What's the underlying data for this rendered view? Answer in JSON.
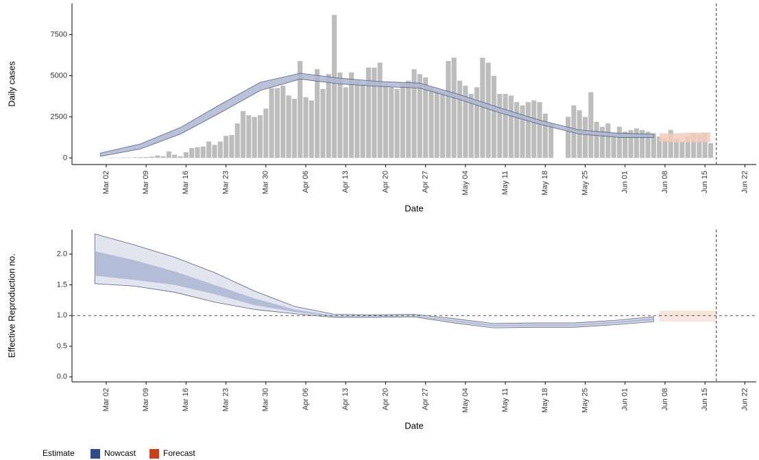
{
  "chart_data": [
    {
      "type": "bar",
      "x_label": "Date",
      "y_label": "Daily cases",
      "x": [
        "Mar 01",
        "Mar 02",
        "Mar 03",
        "Mar 04",
        "Mar 05",
        "Mar 06",
        "Mar 07",
        "Mar 08",
        "Mar 09",
        "Mar 10",
        "Mar 11",
        "Mar 12",
        "Mar 13",
        "Mar 14",
        "Mar 15",
        "Mar 16",
        "Mar 17",
        "Mar 18",
        "Mar 19",
        "Mar 20",
        "Mar 21",
        "Mar 22",
        "Mar 23",
        "Mar 24",
        "Mar 25",
        "Mar 26",
        "Mar 27",
        "Mar 28",
        "Mar 29",
        "Mar 30",
        "Mar 31",
        "Apr 01",
        "Apr 02",
        "Apr 03",
        "Apr 04",
        "Apr 05",
        "Apr 06",
        "Apr 07",
        "Apr 08",
        "Apr 09",
        "Apr 10",
        "Apr 11",
        "Apr 12",
        "Apr 13",
        "Apr 14",
        "Apr 15",
        "Apr 16",
        "Apr 17",
        "Apr 18",
        "Apr 19",
        "Apr 20",
        "Apr 21",
        "Apr 22",
        "Apr 23",
        "Apr 24",
        "Apr 25",
        "Apr 26",
        "Apr 27",
        "Apr 28",
        "Apr 29",
        "Apr 30",
        "May 01",
        "May 02",
        "May 03",
        "May 04",
        "May 05",
        "May 06",
        "May 07",
        "May 08",
        "May 09",
        "May 10",
        "May 11",
        "May 12",
        "May 13",
        "May 14",
        "May 15",
        "May 16",
        "May 17",
        "May 18",
        "May 19",
        "May 20",
        "May 21",
        "May 22",
        "May 23",
        "May 24",
        "May 25",
        "May 26",
        "May 27",
        "May 28",
        "May 29",
        "May 30",
        "May 31",
        "Jun 01",
        "Jun 02",
        "Jun 03",
        "Jun 04",
        "Jun 05",
        "Jun 06",
        "Jun 07",
        "Jun 08",
        "Jun 09",
        "Jun 10",
        "Jun 11",
        "Jun 12",
        "Jun 13",
        "Jun 14",
        "Jun 15",
        "Jun 16"
      ],
      "values": [
        10,
        10,
        20,
        20,
        30,
        30,
        40,
        50,
        60,
        80,
        150,
        100,
        400,
        200,
        100,
        350,
        600,
        650,
        700,
        1000,
        800,
        1000,
        1350,
        1400,
        2100,
        2850,
        2600,
        2500,
        2600,
        3000,
        4250,
        4250,
        4400,
        3800,
        3600,
        5900,
        3700,
        3500,
        5400,
        4200,
        5100,
        8700,
        5200,
        4300,
        5200,
        4700,
        4500,
        5500,
        5500,
        5800,
        4500,
        4300,
        4200,
        4500,
        4700,
        5400,
        5100,
        4900,
        4300,
        4100,
        4000,
        5900,
        6100,
        4700,
        4400,
        3900,
        4300,
        6100,
        5800,
        5000,
        3900,
        3900,
        3800,
        3400,
        3200,
        3400,
        3500,
        3400,
        2700,
        2100,
        null,
        null,
        2500,
        3200,
        2900,
        2500,
        4000,
        2200,
        1900,
        2100,
        1500,
        1900,
        1600,
        1700,
        1800,
        1700,
        1600,
        1500,
        1300,
        1200,
        1700,
        1200,
        1000,
        1300,
        1500,
        1400,
        1500,
        900
      ],
      "color": "#bdbdbd",
      "series": [
        {
          "color": "#aeb7d3",
          "x": [
            "Mar 01",
            "Mar 08",
            "Mar 15",
            "Mar 22",
            "Mar 29",
            "Apr 05",
            "Apr 12",
            "Apr 19",
            "Apr 26",
            "May 03",
            "May 10",
            "May 17",
            "May 24",
            "May 31",
            "Jun 06"
          ],
          "lower": [
            100,
            550,
            1450,
            2750,
            4100,
            4800,
            4500,
            4350,
            4250,
            3550,
            2750,
            2050,
            1450,
            1250,
            1250
          ],
          "upper": [
            300,
            850,
            1850,
            3250,
            4600,
            5150,
            4850,
            4650,
            4550,
            3850,
            3050,
            2300,
            1700,
            1500,
            1450
          ]
        },
        {
          "color": "#f3cdbd",
          "x": [
            "Jun 07",
            "Jun 10",
            "Jun 13",
            "Jun 16"
          ],
          "lower": [
            1000,
            950,
            950,
            950
          ],
          "upper": [
            1500,
            1500,
            1550,
            1550
          ]
        }
      ],
      "xlim": [
        "Feb 25",
        "Jun 24"
      ],
      "xticks": [
        "Mar 02",
        "Mar 09",
        "Mar 16",
        "Mar 23",
        "Mar 30",
        "Apr 06",
        "Apr 13",
        "Apr 20",
        "Apr 27",
        "May 04",
        "May 11",
        "May 18",
        "May 25",
        "Jun 01",
        "Jun 08",
        "Jun 15",
        "Jun 22"
      ],
      "ylim": [
        -400,
        9400
      ],
      "yticks": [
        0,
        2500,
        5000,
        7500
      ],
      "vline": "Jun 17"
    },
    {
      "type": "ribbon",
      "x_label": "Date",
      "y_label": "Effective Reproduction no.",
      "series": [
        {
          "color": "#dde1ec",
          "inner_color": "#aab6d2",
          "x": [
            "Feb 29",
            "Mar 07",
            "Mar 14",
            "Mar 21",
            "Mar 28",
            "Apr 04",
            "Apr 11",
            "Apr 18",
            "Apr 25",
            "May 02",
            "May 09",
            "May 16",
            "May 23",
            "May 30",
            "Jun 06"
          ],
          "lower": [
            1.52,
            1.48,
            1.38,
            1.22,
            1.1,
            1.03,
            0.97,
            0.97,
            0.98,
            0.88,
            0.8,
            0.81,
            0.81,
            0.85,
            0.9
          ],
          "upper": [
            2.33,
            2.15,
            1.95,
            1.7,
            1.4,
            1.15,
            1.02,
            1.01,
            1.02,
            0.95,
            0.87,
            0.88,
            0.88,
            0.92,
            0.98
          ],
          "inner_lower": [
            1.65,
            1.58,
            1.5,
            1.35,
            1.17,
            1.06,
            0.98,
            0.98,
            0.99,
            0.9,
            0.82,
            0.83,
            0.83,
            0.87,
            0.92
          ],
          "inner_upper": [
            2.05,
            1.9,
            1.72,
            1.5,
            1.28,
            1.1,
            1.0,
            0.99,
            1.0,
            0.93,
            0.85,
            0.86,
            0.86,
            0.9,
            0.96
          ]
        },
        {
          "color": "#f6e2d8",
          "x": [
            "Jun 07",
            "Jun 12",
            "Jun 17"
          ],
          "lower": [
            0.9,
            0.9,
            0.9
          ],
          "upper": [
            1.08,
            1.08,
            1.08
          ]
        }
      ],
      "xlim": [
        "Feb 25",
        "Jun 24"
      ],
      "xticks": [
        "Mar 02",
        "Mar 09",
        "Mar 16",
        "Mar 23",
        "Mar 30",
        "Apr 06",
        "Apr 13",
        "Apr 20",
        "Apr 27",
        "May 04",
        "May 11",
        "May 18",
        "May 25",
        "Jun 01",
        "Jun 08",
        "Jun 15",
        "Jun 22"
      ],
      "ylim": [
        -0.08,
        2.4
      ],
      "yticks": [
        {
          "value": 0,
          "label": "0.0"
        },
        0.5,
        {
          "value": 1,
          "label": "1.0"
        },
        1.5,
        {
          "value": 2,
          "label": "2.0"
        }
      ],
      "hline": 1,
      "vline": "Jun 17"
    }
  ],
  "legend": {
    "title": "Estimate",
    "items": [
      {
        "name": "Nowcast",
        "color": "#2f4b8c"
      },
      {
        "name": "Forecast",
        "color": "#c6411a"
      }
    ]
  }
}
